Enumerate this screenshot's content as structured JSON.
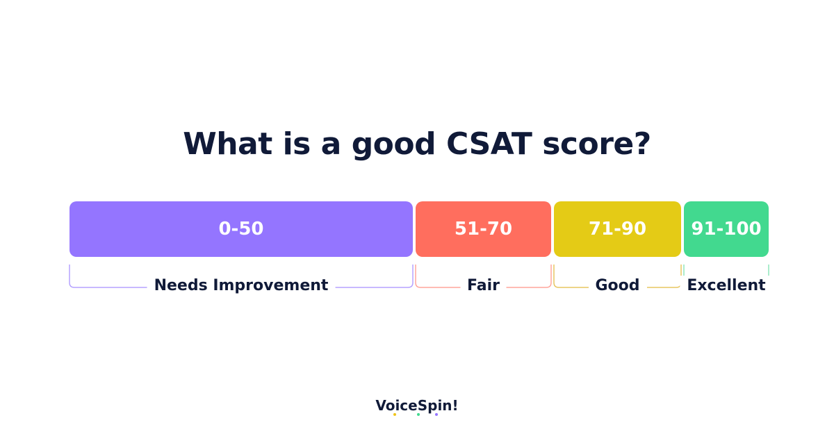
{
  "title": "What is a good CSAT score?",
  "ranges": [
    {
      "label": "0-50",
      "category": "Needs Improvement",
      "color": "#9475ff",
      "bracket_color": "#b5a2ff"
    },
    {
      "label": "51-70",
      "category": "Fair",
      "color": "#ff6e5e",
      "bracket_color": "#ffa69c"
    },
    {
      "label": "71-90",
      "category": "Good",
      "color": "#e4cb16",
      "bracket_color": "#e7c560"
    },
    {
      "label": "91-100",
      "category": "Excellent",
      "color": "#42d98f",
      "bracket_color": "#8fe6bc"
    }
  ],
  "logo": {
    "text": "VoiceSpin!",
    "accent_colors": [
      "#f0c419",
      "#42d98f",
      "#9475ff"
    ]
  }
}
